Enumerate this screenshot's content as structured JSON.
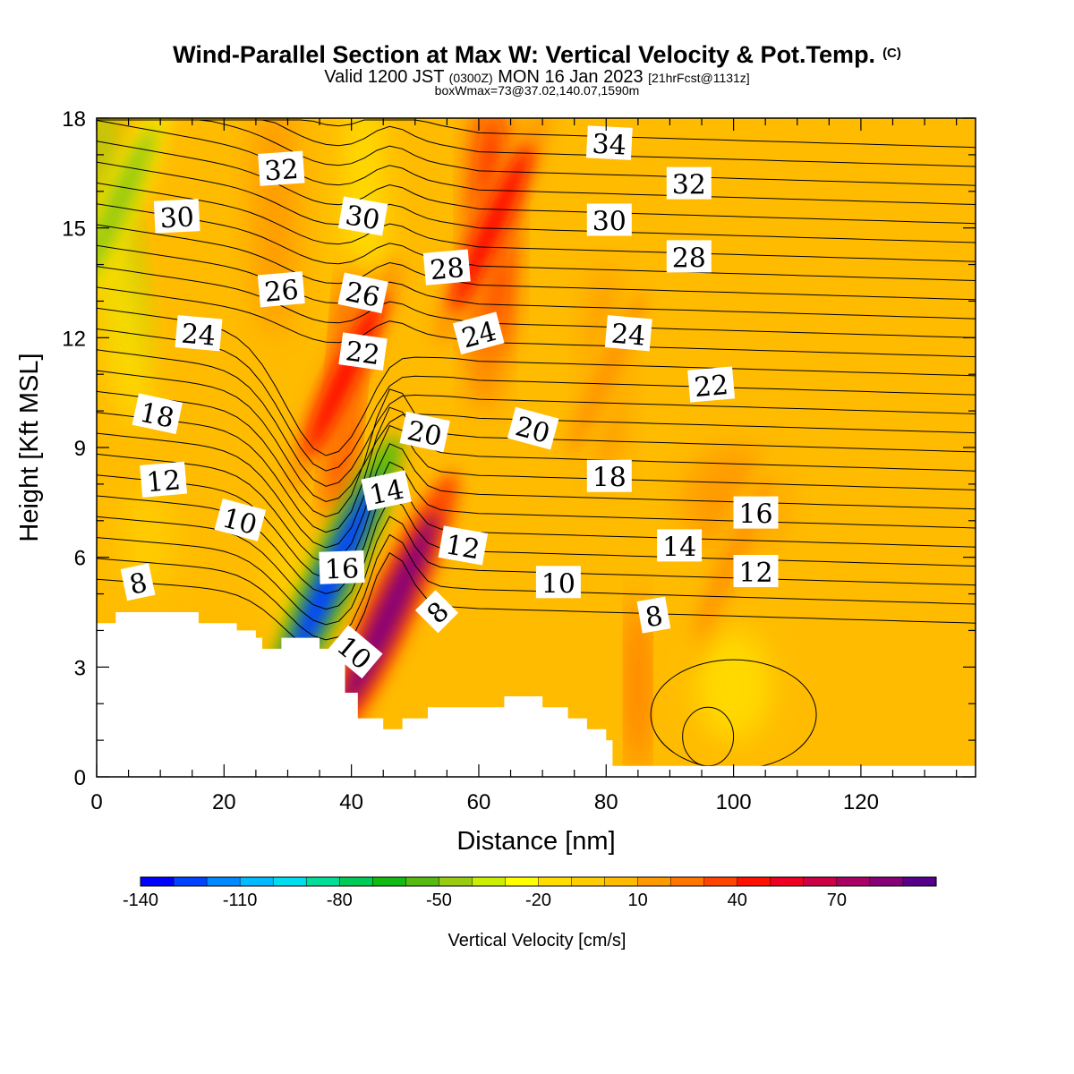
{
  "chart_data": {
    "type": "heatmap",
    "title": "Wind-Parallel Section at Max W: Vertical Velocity & Pot.Temp.",
    "title_mark": "(C)",
    "subtitle_prefix": "Valid 1200 JST",
    "subtitle_small_1": "(0300Z)",
    "subtitle_main": "MON 16 Jan 2023",
    "subtitle_small_2": "[21hrFcst@1131z]",
    "subtitle2": "boxWmax=73@37.02,140.07,1590m",
    "xlabel": "Distance [nm]",
    "ylabel": "Height [Kft MSL]",
    "xlim": [
      0,
      138
    ],
    "ylim": [
      0,
      18
    ],
    "x_ticks": [
      0,
      20,
      40,
      60,
      80,
      100,
      120
    ],
    "y_ticks": [
      0,
      3,
      6,
      9,
      12,
      15,
      18
    ],
    "colorbar": {
      "label": "Vertical Velocity [cm/s]",
      "min": -140,
      "max": 90,
      "step": 10,
      "tick_labels": [
        -140,
        -110,
        -80,
        -50,
        -20,
        10,
        40,
        70
      ],
      "colors": [
        "#0000ff",
        "#0044ff",
        "#0088ff",
        "#00bbff",
        "#00ddee",
        "#00dd99",
        "#00cc55",
        "#11bb11",
        "#55bb11",
        "#99cc11",
        "#ccee00",
        "#ffff00",
        "#ffdd00",
        "#ffcc00",
        "#ffbb00",
        "#ff9900",
        "#ff7700",
        "#ff4400",
        "#ff1100",
        "#ee0022",
        "#cc0044",
        "#aa0066",
        "#880077",
        "#550088"
      ]
    },
    "vertical_velocity_features": [
      {
        "x": 3,
        "y": 15.5,
        "w": -50,
        "note": "descent band near left edge upper levels"
      },
      {
        "x": 37,
        "y": 5.5,
        "w": -130,
        "note": "strong downdraft lee of ridge"
      },
      {
        "x": 46,
        "y": 4.5,
        "w": 80,
        "note": "strong updraft, max w"
      },
      {
        "x": 39,
        "y": 11,
        "w": 40,
        "note": "upward plume aloft"
      },
      {
        "x": 62,
        "y": 15,
        "w": 40,
        "note": "upward plume aloft"
      },
      {
        "x": 80,
        "y": 11,
        "w": 15,
        "note": "weak ascent"
      },
      {
        "x": 100,
        "y": 6,
        "w": 10,
        "note": "weak ascent"
      }
    ],
    "terrain": [
      [
        0,
        4.2
      ],
      [
        3,
        4.2
      ],
      [
        3,
        4.5
      ],
      [
        16,
        4.5
      ],
      [
        16,
        4.2
      ],
      [
        22,
        4.2
      ],
      [
        22,
        4.0
      ],
      [
        25,
        4.0
      ],
      [
        25,
        3.8
      ],
      [
        26,
        3.8
      ],
      [
        26,
        3.5
      ],
      [
        29,
        3.5
      ],
      [
        29,
        3.8
      ],
      [
        35,
        3.8
      ],
      [
        35,
        3.5
      ],
      [
        39,
        3.5
      ],
      [
        39,
        2.3
      ],
      [
        41,
        2.3
      ],
      [
        41,
        1.6
      ],
      [
        45,
        1.6
      ],
      [
        45,
        1.3
      ],
      [
        48,
        1.3
      ],
      [
        48,
        1.6
      ],
      [
        52,
        1.6
      ],
      [
        52,
        1.9
      ],
      [
        64,
        1.9
      ],
      [
        64,
        2.2
      ],
      [
        70,
        2.2
      ],
      [
        70,
        1.9
      ],
      [
        74,
        1.9
      ],
      [
        74,
        1.6
      ],
      [
        77,
        1.6
      ],
      [
        77,
        1.3
      ],
      [
        80,
        1.3
      ],
      [
        80,
        1.0
      ],
      [
        81,
        1.0
      ],
      [
        81,
        0.3
      ],
      [
        138,
        0.3
      ]
    ],
    "theta_contour_labels": [
      {
        "text": "8",
        "x": 6.5,
        "y": 5.3,
        "angle": -12
      },
      {
        "text": "12",
        "x": 10.5,
        "y": 8.1,
        "angle": -5
      },
      {
        "text": "10",
        "x": 22.5,
        "y": 7.0,
        "angle": 15
      },
      {
        "text": "18",
        "x": 9.5,
        "y": 9.9,
        "angle": 12
      },
      {
        "text": "24",
        "x": 16,
        "y": 12.1,
        "angle": 5
      },
      {
        "text": "26",
        "x": 29,
        "y": 13.3,
        "angle": -5
      },
      {
        "text": "30",
        "x": 12.6,
        "y": 15.3,
        "angle": -3
      },
      {
        "text": "32",
        "x": 29,
        "y": 16.6,
        "angle": -4
      },
      {
        "text": "30",
        "x": 41.8,
        "y": 15.3,
        "angle": 10
      },
      {
        "text": "26",
        "x": 41.8,
        "y": 13.2,
        "angle": 12
      },
      {
        "text": "22",
        "x": 41.8,
        "y": 11.6,
        "angle": 8
      },
      {
        "text": "20",
        "x": 51.5,
        "y": 9.4,
        "angle": 12
      },
      {
        "text": "14",
        "x": 45.5,
        "y": 7.8,
        "angle": -12
      },
      {
        "text": "16",
        "x": 38.5,
        "y": 5.7,
        "angle": -2
      },
      {
        "text": "10",
        "x": 40.5,
        "y": 3.4,
        "angle": 40
      },
      {
        "text": "8",
        "x": 53.5,
        "y": 4.5,
        "angle": -45
      },
      {
        "text": "12",
        "x": 57.5,
        "y": 6.3,
        "angle": 10
      },
      {
        "text": "28",
        "x": 55,
        "y": 13.9,
        "angle": -5
      },
      {
        "text": "24",
        "x": 60,
        "y": 12.1,
        "angle": -15
      },
      {
        "text": "20",
        "x": 68.5,
        "y": 9.5,
        "angle": 15
      },
      {
        "text": "10",
        "x": 72.5,
        "y": 5.3,
        "angle": 0
      },
      {
        "text": "34",
        "x": 80.5,
        "y": 17.3,
        "angle": 3
      },
      {
        "text": "30",
        "x": 80.5,
        "y": 15.2,
        "angle": 0
      },
      {
        "text": "24",
        "x": 83.5,
        "y": 12.1,
        "angle": 5
      },
      {
        "text": "18",
        "x": 80.5,
        "y": 8.2,
        "angle": 0
      },
      {
        "text": "8",
        "x": 87.5,
        "y": 4.4,
        "angle": -10
      },
      {
        "text": "32",
        "x": 93,
        "y": 16.2,
        "angle": 0
      },
      {
        "text": "28",
        "x": 93,
        "y": 14.2,
        "angle": 0
      },
      {
        "text": "22",
        "x": 96.5,
        "y": 10.7,
        "angle": -5
      },
      {
        "text": "14",
        "x": 91.5,
        "y": 6.3,
        "angle": 0
      },
      {
        "text": "16",
        "x": 103.5,
        "y": 7.2,
        "angle": 0
      },
      {
        "text": "12",
        "x": 103.5,
        "y": 5.6,
        "angle": 0
      }
    ]
  }
}
